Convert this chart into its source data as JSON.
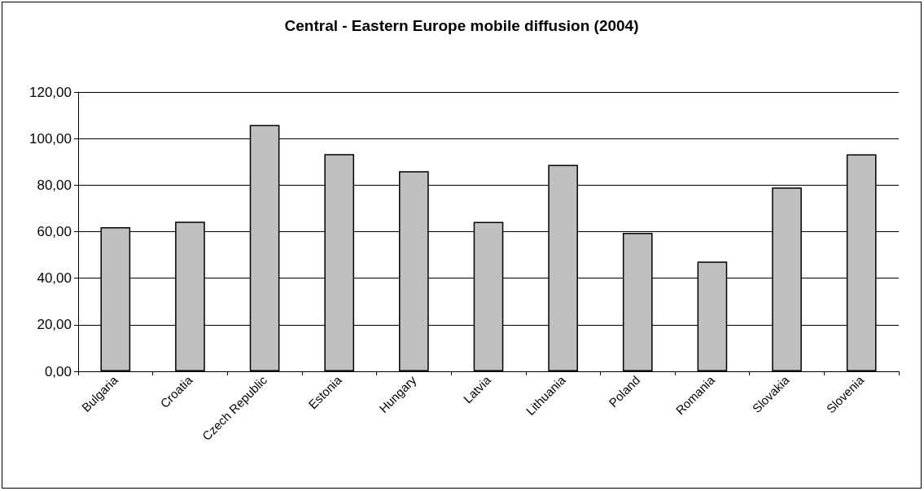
{
  "chart_data": {
    "type": "bar",
    "title": "Central - Eastern Europe mobile diffusion (2004)",
    "categories": [
      "Bulgaria",
      "Croatia",
      "Czech Republic",
      "Estonia",
      "Hungary",
      "Latvia",
      "Lithuania",
      "Poland",
      "Romania",
      "Slovakia",
      "Slovenia"
    ],
    "values": [
      61.9,
      64.3,
      105.8,
      93.3,
      86.0,
      64.2,
      88.7,
      59.5,
      47.1,
      79.0,
      93.2
    ],
    "color": "#c0c0c0",
    "ylim": [
      0,
      120
    ],
    "yticks": [
      {
        "value": 0,
        "label": "0,00"
      },
      {
        "value": 20,
        "label": "20,00"
      },
      {
        "value": 40,
        "label": "40,00"
      },
      {
        "value": 60,
        "label": "60,00"
      },
      {
        "value": 80,
        "label": "80,00"
      },
      {
        "value": 100,
        "label": "100,00"
      },
      {
        "value": 120,
        "label": "120,00"
      }
    ],
    "grid": "y"
  }
}
